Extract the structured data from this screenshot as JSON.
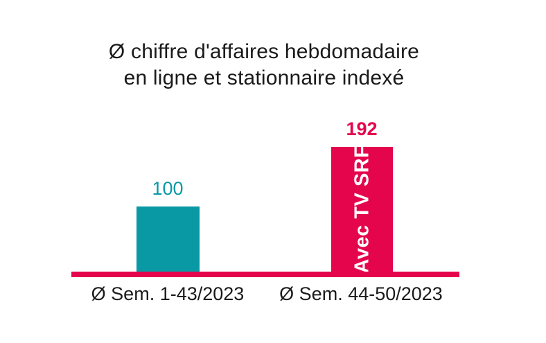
{
  "chart": {
    "title_line1": "Ø chiffre d'affaires hebdomadaire",
    "title_line2": "en ligne et stationnaire indexé"
  },
  "chart_data": {
    "type": "bar",
    "title": "Ø chiffre d'affaires hebdomadaire en ligne et stationnaire indexé",
    "categories": [
      "Ø Sem. 1-43/2023",
      "Ø Sem. 44-50/2023"
    ],
    "values": [
      100,
      192
    ],
    "bar_colors": [
      "#0899A5",
      "#E5054D"
    ],
    "bar_inside_labels": [
      "",
      "Avec TV SRF"
    ],
    "value_label_colors": [
      "#0899A5",
      "#E5054D"
    ],
    "axis_color": "#E5054D",
    "text_color": "#1A1A1A",
    "ylim": [
      0,
      200
    ],
    "grid": false,
    "legend": false
  }
}
